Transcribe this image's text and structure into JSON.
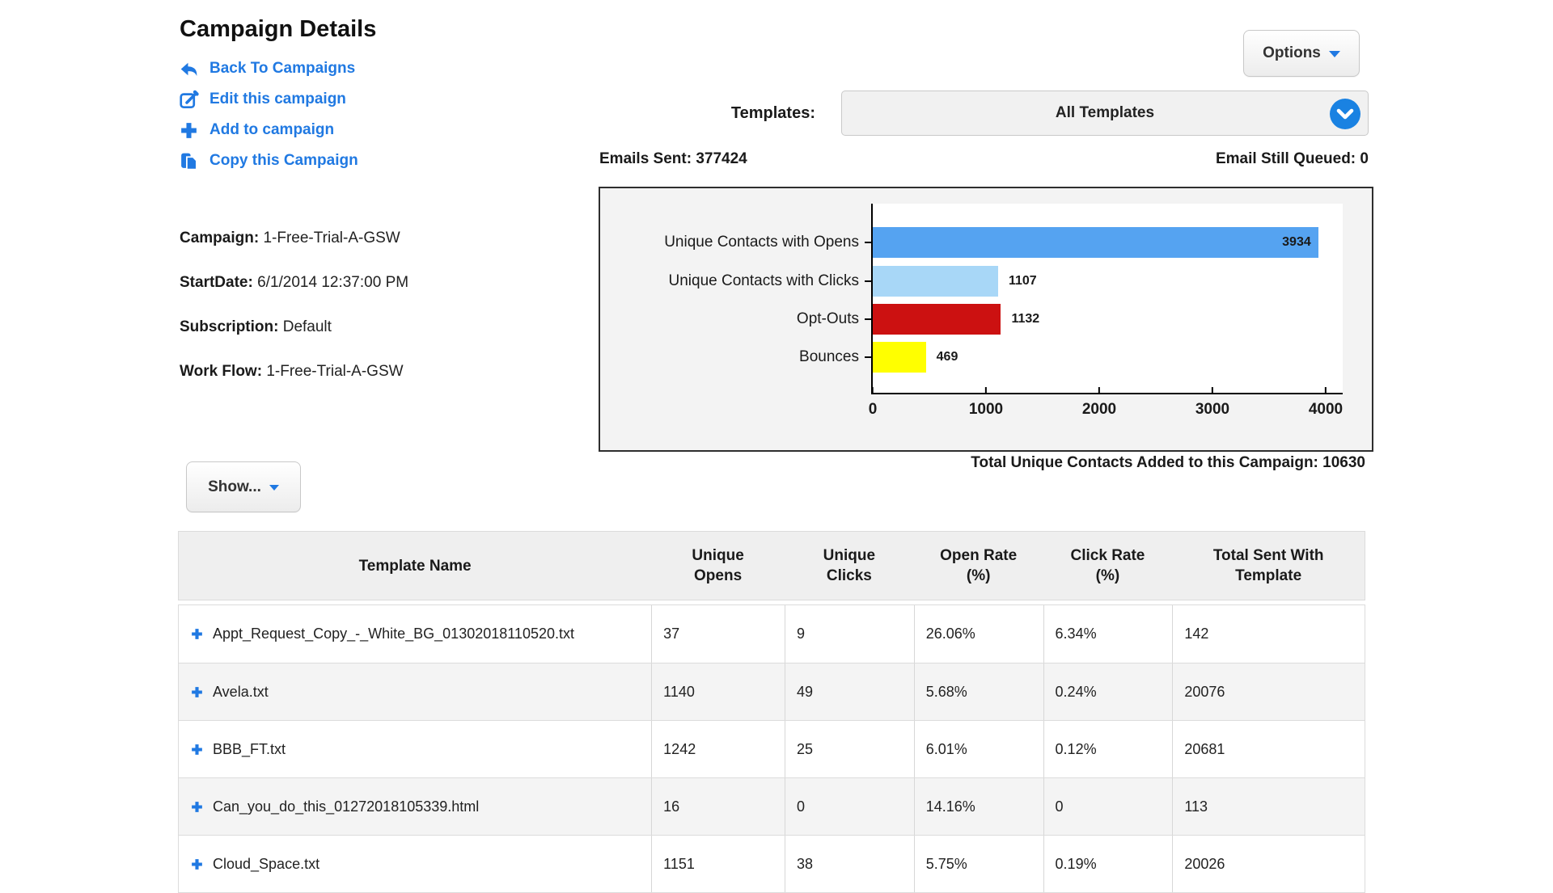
{
  "page_title": "Campaign Details",
  "action_links": [
    {
      "label": "Back To Campaigns",
      "icon": "back-arrow-icon"
    },
    {
      "label": "Edit this campaign",
      "icon": "edit-pencil-icon"
    },
    {
      "label": "Add to campaign",
      "icon": "plus-icon"
    },
    {
      "label": "Copy this Campaign",
      "icon": "copy-pages-icon"
    }
  ],
  "options_button": {
    "label": "Options"
  },
  "show_button": {
    "label": "Show..."
  },
  "templates": {
    "label": "Templates:",
    "selected_value": "All Templates"
  },
  "stats": {
    "emails_sent_label": "Emails Sent:",
    "emails_sent_value": "377424",
    "queued_label": "Email Still Queued:",
    "queued_value": "0",
    "total_added_label": "Total Unique Contacts Added to this Campaign:",
    "total_added_value": "10630"
  },
  "campaign_info": [
    {
      "label": "Campaign:",
      "value": "1-Free-Trial-A-GSW"
    },
    {
      "label": "StartDate:",
      "value": "6/1/2014 12:37:00 PM"
    },
    {
      "label": "Subscription:",
      "value": "Default"
    },
    {
      "label": "Work Flow:",
      "value": "1-Free-Trial-A-GSW"
    }
  ],
  "chart_data": {
    "type": "bar",
    "orientation": "horizontal",
    "title": "",
    "xlabel": "",
    "ylabel": "",
    "categories": [
      "Unique Contacts with Opens",
      "Unique Contacts with Clicks",
      "Opt-Outs",
      "Bounces"
    ],
    "values": [
      3934,
      1107,
      1132,
      469
    ],
    "bar_colors": [
      "#55a3f1",
      "#a8d7f7",
      "#cc1111",
      "#ffff00"
    ],
    "xlim": [
      0,
      4000
    ],
    "xticks": [
      0,
      1000,
      2000,
      3000,
      4000
    ],
    "grid": false,
    "legend": false,
    "value_labels": true
  },
  "table": {
    "columns": [
      "Template Name",
      "Unique\nOpens",
      "Unique\nClicks",
      "Open Rate\n(%)",
      "Click Rate\n(%)",
      "Total Sent With\nTemplate"
    ],
    "rows": [
      {
        "name": "Appt_Request_Copy_-_White_BG_01302018110520.txt",
        "unique_opens": "37",
        "unique_clicks": "9",
        "open_rate": "26.06%",
        "click_rate": "6.34%",
        "total_sent": "142"
      },
      {
        "name": "Avela.txt",
        "unique_opens": "1140",
        "unique_clicks": "49",
        "open_rate": "5.68%",
        "click_rate": "0.24%",
        "total_sent": "20076"
      },
      {
        "name": "BBB_FT.txt",
        "unique_opens": "1242",
        "unique_clicks": "25",
        "open_rate": "6.01%",
        "click_rate": "0.12%",
        "total_sent": "20681"
      },
      {
        "name": "Can_you_do_this_01272018105339.html",
        "unique_opens": "16",
        "unique_clicks": "0",
        "open_rate": "14.16%",
        "click_rate": "0",
        "total_sent": "113"
      },
      {
        "name": "Cloud_Space.txt",
        "unique_opens": "1151",
        "unique_clicks": "38",
        "open_rate": "5.75%",
        "click_rate": "0.19%",
        "total_sent": "20026"
      }
    ]
  },
  "colors": {
    "link_blue": "#2079e2",
    "circle_icon_blue": "#1a82e2",
    "bar_blue": "#55a3f1",
    "bar_light_blue": "#a8d7f7",
    "bar_red": "#cc1111",
    "bar_yellow": "#ffff00"
  }
}
